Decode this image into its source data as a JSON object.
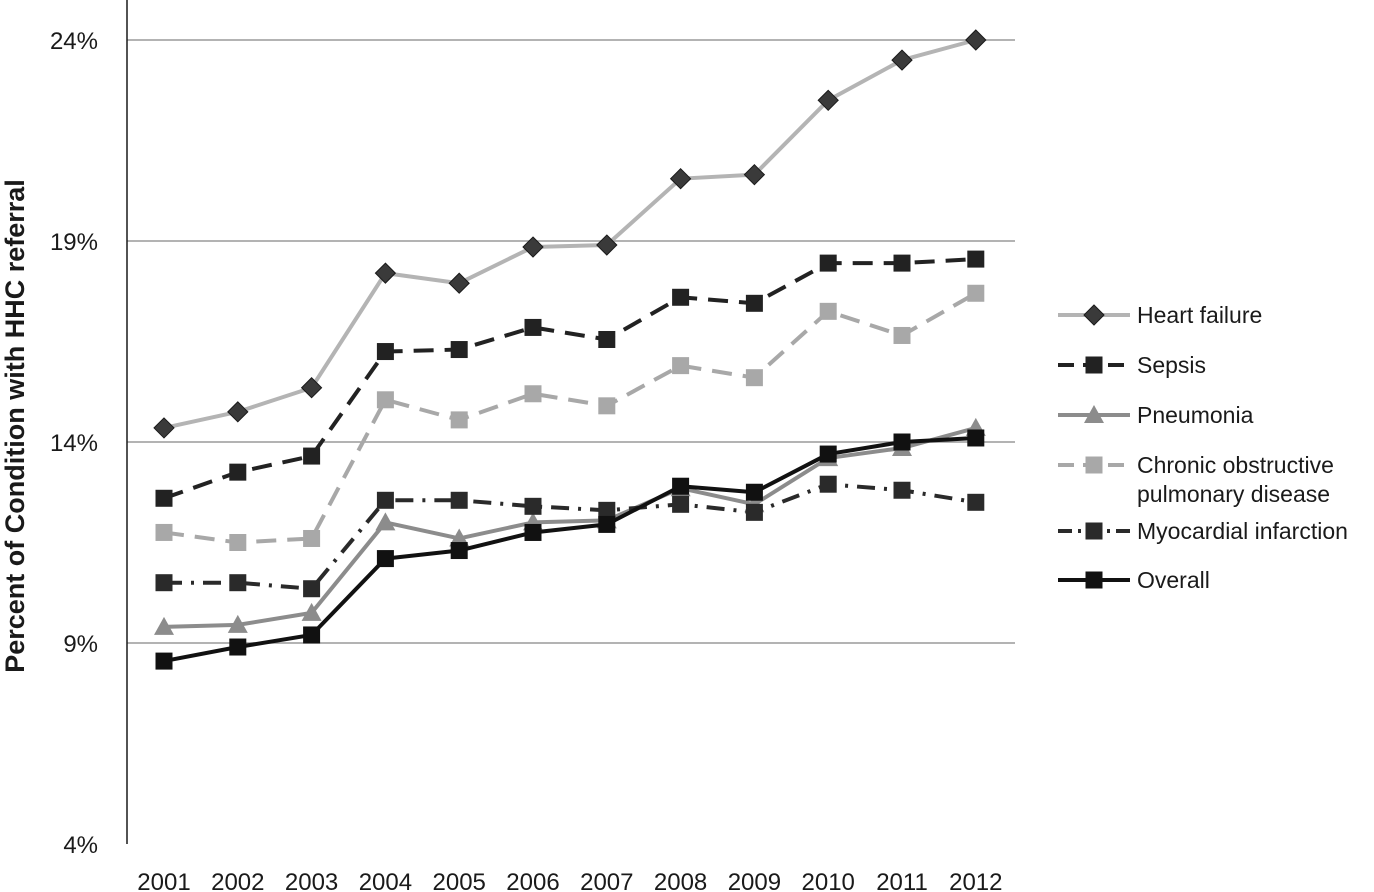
{
  "chart_data": {
    "type": "line",
    "title": "",
    "xlabel": "",
    "ylabel": "Percent of Condition with HHC referral",
    "ylim": [
      4,
      24
    ],
    "yticks": [
      4,
      9,
      14,
      19,
      24
    ],
    "ytick_labels": [
      "4%",
      "9%",
      "14%",
      "19%",
      "24%"
    ],
    "grid": true,
    "legend_position": "right",
    "x": [
      "2001",
      "2002",
      "2003",
      "2004",
      "2005",
      "2006",
      "2007",
      "2008",
      "2009",
      "2010",
      "2011",
      "2012"
    ],
    "series": [
      {
        "name": "Heart failure",
        "label_lines": [
          "Heart failure"
        ],
        "color": "#b4b4b4",
        "marker_color": "#3a3a3a",
        "dash": "solid",
        "marker": "diamond",
        "values": [
          14.35,
          14.75,
          15.35,
          18.2,
          17.95,
          18.85,
          18.9,
          20.55,
          20.65,
          22.5,
          23.5,
          24.0
        ]
      },
      {
        "name": "Sepsis",
        "label_lines": [
          "Sepsis"
        ],
        "color": "#222222",
        "marker_color": "#222222",
        "dash": "dashed",
        "marker": "square",
        "values": [
          12.6,
          13.25,
          13.65,
          16.25,
          16.3,
          16.85,
          16.55,
          17.6,
          17.45,
          18.45,
          18.45,
          18.55
        ]
      },
      {
        "name": "Pneumonia",
        "label_lines": [
          "Pneumonia"
        ],
        "color": "#8c8c8c",
        "marker_color": "#8c8c8c",
        "dash": "solid",
        "marker": "triangle",
        "values": [
          9.4,
          9.45,
          9.75,
          12.0,
          11.6,
          12.0,
          12.05,
          12.85,
          12.45,
          13.6,
          13.85,
          14.35
        ]
      },
      {
        "name": "Chronic obstructive pulmonary disease",
        "label_lines": [
          "Chronic obstructive",
          "pulmonary disease"
        ],
        "color": "#a8a8a8",
        "marker_color": "#a8a8a8",
        "dash": "dashed",
        "marker": "square",
        "values": [
          11.75,
          11.5,
          11.6,
          15.05,
          14.55,
          15.2,
          14.9,
          15.9,
          15.6,
          17.25,
          16.65,
          17.7
        ]
      },
      {
        "name": "Myocardial infarction",
        "label_lines": [
          "Myocardial infarction"
        ],
        "color": "#2a2a2a",
        "marker_color": "#2a2a2a",
        "dash": "dashdot",
        "marker": "square",
        "values": [
          10.5,
          10.5,
          10.35,
          12.55,
          12.55,
          12.4,
          12.3,
          12.45,
          12.25,
          12.95,
          12.8,
          12.5
        ]
      },
      {
        "name": "Overall",
        "label_lines": [
          "Overall"
        ],
        "color": "#111111",
        "marker_color": "#111111",
        "dash": "solid",
        "marker": "square",
        "values": [
          8.55,
          8.9,
          9.2,
          11.1,
          11.3,
          11.75,
          11.95,
          12.9,
          12.75,
          13.7,
          14.0,
          14.1
        ]
      }
    ]
  }
}
